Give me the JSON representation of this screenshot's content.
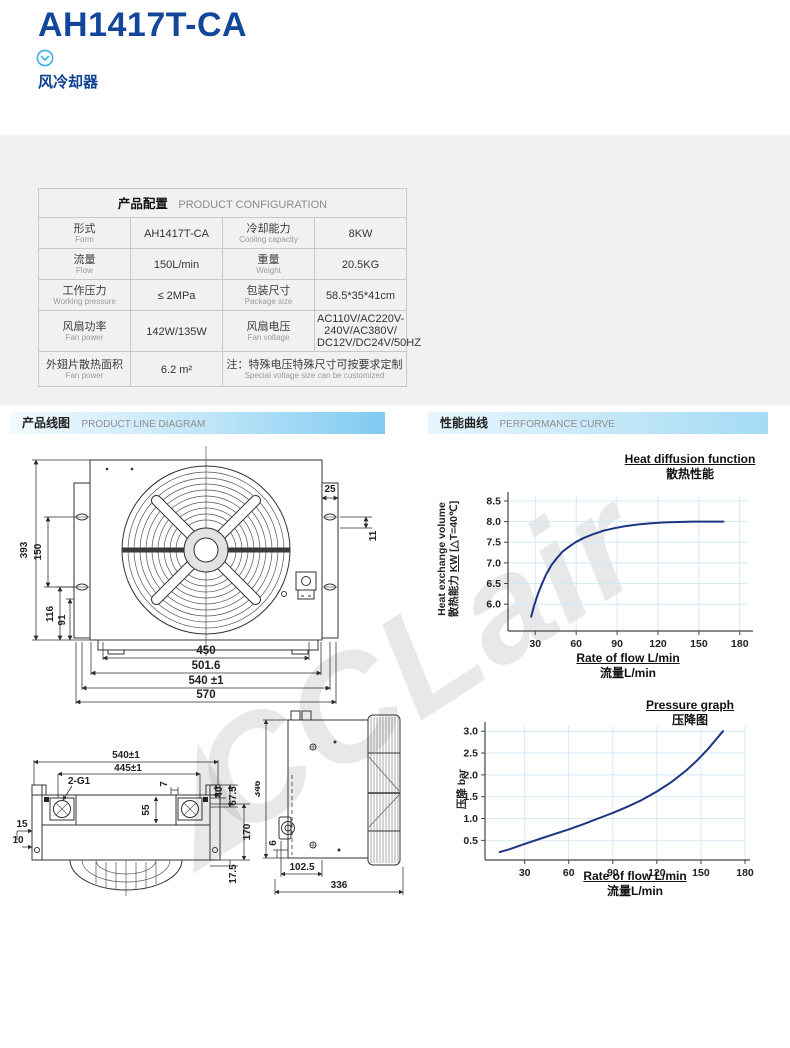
{
  "page": {
    "title": "AH1417T-CA",
    "subtitle": "风冷却器",
    "watermark": "CCLair"
  },
  "config_table": {
    "header_zh": "产品配置",
    "header_en": "PRODUCT CONFIGURATION",
    "rows": [
      {
        "label_zh": "形式",
        "label_en": "Form",
        "value": "AH1417T-CA",
        "label2_zh": "冷却能力",
        "label2_en": "Cooling capacity",
        "value2": "8KW"
      },
      {
        "label_zh": "流量",
        "label_en": "Flow",
        "value": "150L/min",
        "label2_zh": "重量",
        "label2_en": "Weight",
        "value2": "20.5KG"
      },
      {
        "label_zh": "工作压力",
        "label_en": "Working pressure",
        "value": "≤ 2MPa",
        "label2_zh": "包装尺寸",
        "label2_en": "Package size",
        "value2": "58.5*35*41cm"
      },
      {
        "label_zh": "风扇功率",
        "label_en": "Fan power",
        "value": "142W/135W",
        "label2_zh": "风扇电压",
        "label2_en": "Fan voltage",
        "value2_line1": "AC110V/AC220V-240V/AC380V/",
        "value2_line2": "DC12V/DC24V/50HZ"
      },
      {
        "label_zh": "外翅片散热面积",
        "label_en": "Fan power",
        "value": "6.2 m²",
        "note_zh": "注：特殊电压特殊尺寸可按要求定制",
        "note_en": "Special voltage size can be customized"
      }
    ]
  },
  "sections": {
    "left_zh": "产品线图",
    "left_en": "PRODUCT LINE DIAGRAM",
    "right_zh": "性能曲线",
    "right_en": "PERFORMANCE CURVE"
  },
  "diagrams": {
    "front": {
      "left_dims": [
        "393",
        "150",
        "116",
        "91"
      ],
      "right_dims": [
        "25",
        "11"
      ],
      "bottom_dims": [
        "450",
        "501.6",
        "540 ±1",
        "570"
      ]
    },
    "top": {
      "width_dims": [
        "540±1",
        "445±1"
      ],
      "port_label": "2-G1",
      "misc_dims": [
        "7",
        "55"
      ],
      "right_dims": [
        "40",
        "67.5",
        "170",
        "17.5"
      ],
      "left_dims": [
        "15",
        "10"
      ]
    },
    "side": {
      "height_dim": "346",
      "small_dims": [
        "6",
        "102.5",
        "336"
      ]
    }
  },
  "chart_data": [
    {
      "type": "line",
      "title": "Heat diffusion function",
      "title_zh": "散热性能",
      "xlabel": "Rate of flow L/min",
      "xlabel_zh": "流量L/min",
      "ylabel": "Heat exchange volume",
      "ylabel_zh_prefix": "散热能力 ",
      "ylabel_zh_unit": "KW",
      "ylabel_zh_suffix": " [△T=40℃]",
      "xlim": [
        10,
        186
      ],
      "ylim": [
        5.35,
        8.62
      ],
      "xticks": [
        30,
        60,
        90,
        120,
        150,
        180
      ],
      "yticks": [
        6.0,
        6.5,
        7.0,
        7.5,
        8.0,
        8.5
      ],
      "grid": true,
      "grid_color": "#d2e8f6",
      "line_color": "#1d3583",
      "points": [
        [
          27,
          5.7
        ],
        [
          29,
          5.95
        ],
        [
          32,
          6.25
        ],
        [
          35,
          6.5
        ],
        [
          38,
          6.72
        ],
        [
          42,
          6.95
        ],
        [
          46,
          7.12
        ],
        [
          50,
          7.27
        ],
        [
          55,
          7.4
        ],
        [
          60,
          7.51
        ],
        [
          66,
          7.61
        ],
        [
          72,
          7.69
        ],
        [
          80,
          7.78
        ],
        [
          88,
          7.84
        ],
        [
          96,
          7.89
        ],
        [
          105,
          7.93
        ],
        [
          115,
          7.96
        ],
        [
          125,
          7.98
        ],
        [
          135,
          7.99
        ],
        [
          145,
          8.0
        ],
        [
          168,
          8.0
        ]
      ]
    },
    {
      "type": "line",
      "title": "Pressure graph",
      "title_zh": "压降图",
      "xlabel": "Rate of flow L/min",
      "xlabel_zh": "流量L/min",
      "ylabel": "压降 bar",
      "xlim": [
        3,
        180
      ],
      "ylim": [
        0.05,
        3.12
      ],
      "xticks": [
        30,
        60,
        90,
        120,
        150,
        180
      ],
      "yticks": [
        0.5,
        1.0,
        1.5,
        2.0,
        2.5,
        3.0
      ],
      "grid": true,
      "grid_color": "#d2e8f6",
      "line_color": "#1d3583",
      "points": [
        [
          13,
          0.23
        ],
        [
          20,
          0.3
        ],
        [
          30,
          0.42
        ],
        [
          40,
          0.53
        ],
        [
          50,
          0.64
        ],
        [
          60,
          0.75
        ],
        [
          70,
          0.87
        ],
        [
          80,
          1.0
        ],
        [
          90,
          1.13
        ],
        [
          100,
          1.27
        ],
        [
          110,
          1.43
        ],
        [
          120,
          1.62
        ],
        [
          130,
          1.84
        ],
        [
          140,
          2.1
        ],
        [
          148,
          2.35
        ],
        [
          155,
          2.6
        ],
        [
          160,
          2.8
        ],
        [
          165,
          3.0
        ]
      ]
    }
  ]
}
